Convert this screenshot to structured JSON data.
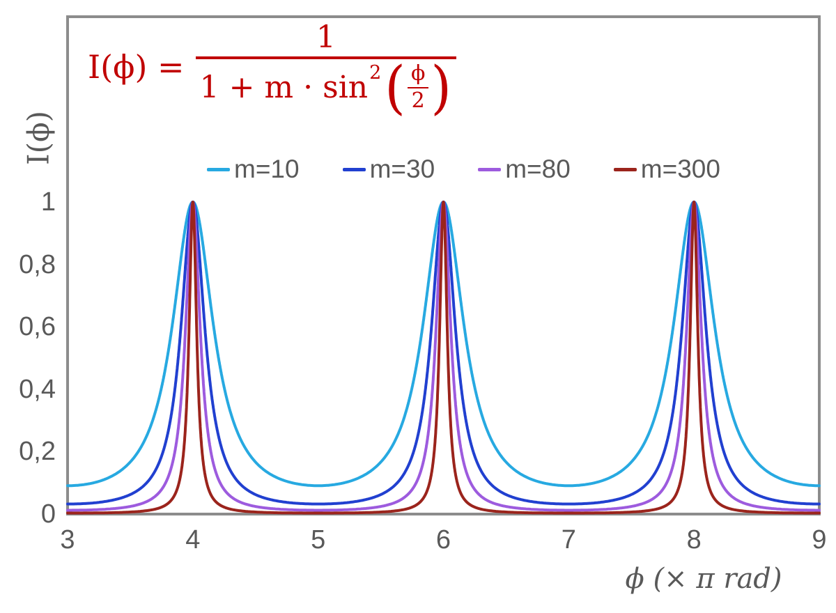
{
  "formula": {
    "lhs": "I(ϕ) =",
    "numerator": "1",
    "denominator_prefix": "1 + m · sin",
    "denominator_exponent": "2",
    "paren_open": "(",
    "paren_close": ")",
    "inner_fraction": {
      "numerator": "ϕ",
      "denominator": "2"
    },
    "color": "#C00000"
  },
  "legend": {
    "items": [
      {
        "label": "m=10",
        "color": "#27A9E1"
      },
      {
        "label": "m=30",
        "color": "#2140D0"
      },
      {
        "label": "m=80",
        "color": "#9D5BDE"
      },
      {
        "label": "m=300",
        "color": "#9B241C"
      }
    ],
    "text_color": "#595959"
  },
  "chart_data": {
    "type": "line",
    "function": "I(ϕ) = 1 / (1 + m·sin²(ϕ/2))",
    "x_unit": "π rad",
    "xlabel": "ϕ  (× π rad)",
    "ylabel": "I(ϕ)",
    "xlim": [
      3,
      9
    ],
    "ylim": [
      0,
      1.6
    ],
    "x_ticks": [
      3,
      4,
      5,
      6,
      7,
      8,
      9
    ],
    "y_ticks": [
      {
        "value": 0,
        "label": "0"
      },
      {
        "value": 0.2,
        "label": "0,2"
      },
      {
        "value": 0.4,
        "label": "0,4"
      },
      {
        "value": 0.6,
        "label": "0,6"
      },
      {
        "value": 0.8,
        "label": "0,8"
      },
      {
        "value": 1,
        "label": "1"
      }
    ],
    "grid": false,
    "legend_position": "top-center",
    "peaks_at_x": [
      4,
      6,
      8
    ],
    "peak_value": 1,
    "series": [
      {
        "name": "m=10",
        "m": 10,
        "color": "#27A9E1",
        "peak_value": 1,
        "min_value": 0.0909
      },
      {
        "name": "m=30",
        "m": 30,
        "color": "#2140D0",
        "peak_value": 1,
        "min_value": 0.0323
      },
      {
        "name": "m=80",
        "m": 80,
        "color": "#9D5BDE",
        "peak_value": 1,
        "min_value": 0.0123
      },
      {
        "name": "m=300",
        "m": 300,
        "color": "#9B241C",
        "peak_value": 1,
        "min_value": 0.0033
      }
    ]
  },
  "axes": {
    "frame_color": "#8C8C8C",
    "tick_text_color": "#595959"
  }
}
